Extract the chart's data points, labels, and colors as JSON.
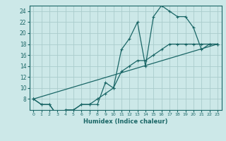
{
  "xlabel": "Humidex (Indice chaleur)",
  "bg_color": "#cce8e8",
  "grid_color": "#aacccc",
  "line_color": "#1a6666",
  "xlim": [
    -0.5,
    23.5
  ],
  "ylim": [
    6,
    25
  ],
  "yticks": [
    8,
    10,
    12,
    14,
    16,
    18,
    20,
    22,
    24
  ],
  "xticks": [
    0,
    1,
    2,
    3,
    4,
    5,
    6,
    7,
    8,
    9,
    10,
    11,
    12,
    13,
    14,
    15,
    16,
    17,
    18,
    19,
    20,
    21,
    22,
    23
  ],
  "line1_x": [
    0,
    1,
    2,
    3,
    4,
    5,
    6,
    7,
    8,
    9,
    10,
    11,
    12,
    13,
    14,
    15,
    16,
    17,
    18,
    19,
    20,
    21,
    22,
    23
  ],
  "line1_y": [
    8,
    7,
    7,
    5,
    6,
    6,
    7,
    7,
    7,
    11,
    10,
    17,
    19,
    22,
    14,
    23,
    25,
    24,
    23,
    23,
    21,
    17,
    18,
    18
  ],
  "line2_x": [
    0,
    1,
    2,
    3,
    4,
    5,
    6,
    7,
    8,
    9,
    10,
    11,
    12,
    13,
    14,
    15,
    16,
    17,
    18,
    19,
    20,
    21,
    22,
    23
  ],
  "line2_y": [
    8,
    7,
    7,
    5,
    6,
    6,
    7,
    7,
    8,
    9,
    10,
    13,
    14,
    15,
    15,
    16,
    17,
    18,
    18,
    18,
    18,
    18,
    18,
    18
  ],
  "line3_x": [
    0,
    23
  ],
  "line3_y": [
    8,
    18
  ]
}
